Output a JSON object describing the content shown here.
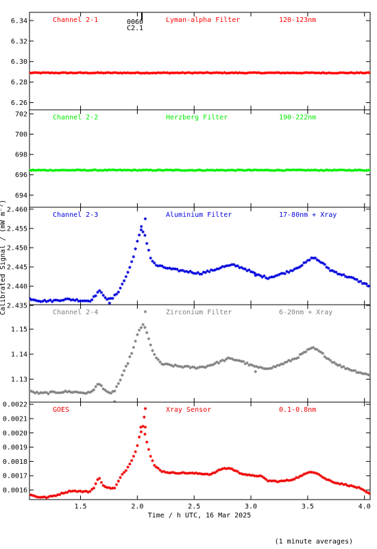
{
  "chart_data": {
    "type": "scatter",
    "xlabel": "Time / h UTC, 16 Mar 2025",
    "ylabel": "Calibrated Signal / (mW m⁻²)",
    "footnote": "(1 minute averages)",
    "xlim": [
      1.05,
      4.05
    ],
    "xticks": [
      1.5,
      2.0,
      2.5,
      3.0,
      3.5,
      4.0
    ],
    "xtick_labels": [
      "1.5",
      "2.0",
      "2.5",
      "3.0",
      "3.5",
      "4.0"
    ],
    "marker": {
      "top_label": "0060",
      "bottom_label": "C2.1",
      "x": 2.04
    },
    "panels": [
      {
        "channel": "Channel 2-1",
        "filter": "Lyman-alpha Filter",
        "band": "120-123nm",
        "color": "#ff0000",
        "ylim": [
          6.253,
          6.348
        ],
        "yticks": [
          6.26,
          6.28,
          6.3,
          6.32,
          6.34
        ],
        "ytick_labels": [
          "6.26",
          "6.28",
          "6.30",
          "6.32",
          "6.34"
        ],
        "curve": [
          [
            1.05,
            6.289
          ],
          [
            4.05,
            6.289
          ]
        ],
        "noise": 0.0004,
        "outliers": []
      },
      {
        "channel": "Channel 2-2",
        "filter": "Herzberg Filter",
        "band": "190-222nm",
        "color": "#00ee00",
        "ylim": [
          692.8,
          702.4
        ],
        "yticks": [
          694,
          696,
          698,
          700,
          702
        ],
        "ytick_labels": [
          "694",
          "696",
          "698",
          "700",
          "702"
        ],
        "curve": [
          [
            1.05,
            696.45
          ],
          [
            4.05,
            696.45
          ]
        ],
        "noise": 0.04,
        "outliers": []
      },
      {
        "channel": "Channel 2-3",
        "filter": "Aluminium Filter",
        "band": "17-80nm + Xray",
        "color": "#0000dd",
        "ylim": [
          2.4352,
          2.4605
        ],
        "yticks": [
          2.435,
          2.44,
          2.445,
          2.45,
          2.455,
          2.46
        ],
        "ytick_labels": [
          "2.435",
          "2.440",
          "2.445",
          "2.450",
          "2.455",
          "2.460"
        ],
        "curve": [
          [
            1.05,
            2.4368
          ],
          [
            1.15,
            2.4362
          ],
          [
            1.25,
            2.4362
          ],
          [
            1.33,
            2.4365
          ],
          [
            1.4,
            2.4366
          ],
          [
            1.5,
            2.4363
          ],
          [
            1.58,
            2.4362
          ],
          [
            1.62,
            2.4372
          ],
          [
            1.66,
            2.4388
          ],
          [
            1.7,
            2.4378
          ],
          [
            1.74,
            2.4365
          ],
          [
            1.78,
            2.4368
          ],
          [
            1.83,
            2.4385
          ],
          [
            1.88,
            2.4412
          ],
          [
            1.93,
            2.4445
          ],
          [
            1.97,
            2.4482
          ],
          [
            2.0,
            2.4515
          ],
          [
            2.03,
            2.4545
          ],
          [
            2.06,
            2.454
          ],
          [
            2.09,
            2.4505
          ],
          [
            2.12,
            2.447
          ],
          [
            2.16,
            2.4455
          ],
          [
            2.22,
            2.445
          ],
          [
            2.32,
            2.4443
          ],
          [
            2.45,
            2.4438
          ],
          [
            2.55,
            2.4433
          ],
          [
            2.65,
            2.444
          ],
          [
            2.75,
            2.445
          ],
          [
            2.85,
            2.4455
          ],
          [
            2.95,
            2.4445
          ],
          [
            3.05,
            2.443
          ],
          [
            3.15,
            2.4422
          ],
          [
            3.25,
            2.443
          ],
          [
            3.35,
            2.444
          ],
          [
            3.45,
            2.4455
          ],
          [
            3.55,
            2.4475
          ],
          [
            3.62,
            2.4462
          ],
          [
            3.7,
            2.4442
          ],
          [
            3.8,
            2.443
          ],
          [
            3.9,
            2.442
          ],
          [
            4.05,
            2.44
          ]
        ],
        "noise": 0.00025,
        "outliers": [
          [
            2.07,
            2.4575
          ],
          [
            2.035,
            2.4555
          ],
          [
            1.755,
            2.4356
          ],
          [
            3.04,
            2.4428
          ]
        ]
      },
      {
        "channel": "Channel 2-4",
        "filter": "Zirconium Filter",
        "band": "6-20nm + Xray",
        "color": "#808080",
        "ylim": [
          1.1208,
          1.1598
        ],
        "yticks": [
          1.13,
          1.14,
          1.15
        ],
        "ytick_labels": [
          "1.13",
          "1.14",
          "1.15"
        ],
        "curve": [
          [
            1.05,
            1.125
          ],
          [
            1.15,
            1.1243
          ],
          [
            1.3,
            1.1248
          ],
          [
            1.4,
            1.125
          ],
          [
            1.58,
            1.1244
          ],
          [
            1.62,
            1.1262
          ],
          [
            1.66,
            1.1282
          ],
          [
            1.7,
            1.1265
          ],
          [
            1.76,
            1.1238
          ],
          [
            1.8,
            1.1255
          ],
          [
            1.86,
            1.1305
          ],
          [
            1.92,
            1.137
          ],
          [
            1.97,
            1.143
          ],
          [
            2.01,
            1.149
          ],
          [
            2.05,
            1.152
          ],
          [
            2.08,
            1.149
          ],
          [
            2.12,
            1.143
          ],
          [
            2.17,
            1.138
          ],
          [
            2.22,
            1.136
          ],
          [
            2.35,
            1.1352
          ],
          [
            2.5,
            1.1346
          ],
          [
            2.6,
            1.135
          ],
          [
            2.7,
            1.1365
          ],
          [
            2.8,
            1.1382
          ],
          [
            2.9,
            1.1375
          ],
          [
            3.0,
            1.1355
          ],
          [
            3.1,
            1.1342
          ],
          [
            3.2,
            1.1348
          ],
          [
            3.3,
            1.1365
          ],
          [
            3.4,
            1.1385
          ],
          [
            3.5,
            1.1415
          ],
          [
            3.55,
            1.1425
          ],
          [
            3.62,
            1.1405
          ],
          [
            3.7,
            1.1375
          ],
          [
            3.8,
            1.135
          ],
          [
            3.9,
            1.1335
          ],
          [
            4.05,
            1.1315
          ]
        ],
        "noise": 0.0004,
        "outliers": [
          [
            2.07,
            1.157
          ],
          [
            1.8,
            1.121
          ],
          [
            3.04,
            1.133
          ]
        ]
      },
      {
        "channel": "GOES",
        "filter": "Xray Sensor",
        "band": "0.1-0.8nm",
        "color": "#ee0000",
        "ylim": [
          0.001533,
          0.002215
        ],
        "yticks": [
          0.0016,
          0.0017,
          0.0018,
          0.0019,
          0.002,
          0.0021,
          0.0022
        ],
        "ytick_labels": [
          "0.0016",
          "0.0017",
          "0.0018",
          "0.0019",
          "0.0020",
          "0.0021",
          "0.0022"
        ],
        "curve": [
          [
            1.05,
            0.001568
          ],
          [
            1.12,
            0.001552
          ],
          [
            1.2,
            0.001548
          ],
          [
            1.28,
            0.001562
          ],
          [
            1.35,
            0.00158
          ],
          [
            1.42,
            0.001595
          ],
          [
            1.5,
            0.00159
          ],
          [
            1.58,
            0.001588
          ],
          [
            1.62,
            0.00162
          ],
          [
            1.66,
            0.00169
          ],
          [
            1.69,
            0.00164
          ],
          [
            1.74,
            0.001615
          ],
          [
            1.8,
            0.001612
          ],
          [
            1.86,
            0.0017
          ],
          [
            1.91,
            0.00175
          ],
          [
            1.95,
            0.00181
          ],
          [
            1.99,
            0.00188
          ],
          [
            2.02,
            0.00198
          ],
          [
            2.05,
            0.00205
          ],
          [
            2.08,
            0.00195
          ],
          [
            2.11,
            0.00185
          ],
          [
            2.15,
            0.00177
          ],
          [
            2.22,
            0.00173
          ],
          [
            2.3,
            0.00172
          ],
          [
            2.4,
            0.00172
          ],
          [
            2.55,
            0.001715
          ],
          [
            2.65,
            0.00171
          ],
          [
            2.75,
            0.00175
          ],
          [
            2.82,
            0.001752
          ],
          [
            2.9,
            0.00172
          ],
          [
            3.0,
            0.0017
          ],
          [
            3.08,
            0.0017
          ],
          [
            3.15,
            0.001665
          ],
          [
            3.25,
            0.00166
          ],
          [
            3.35,
            0.00167
          ],
          [
            3.45,
            0.0017
          ],
          [
            3.52,
            0.00173
          ],
          [
            3.58,
            0.00172
          ],
          [
            3.65,
            0.00168
          ],
          [
            3.75,
            0.00165
          ],
          [
            3.85,
            0.001635
          ],
          [
            3.95,
            0.001615
          ],
          [
            4.05,
            0.00157
          ]
        ],
        "noise": 4e-06,
        "outliers": [
          [
            2.07,
            0.00217
          ],
          [
            2.06,
            0.00211
          ],
          [
            2.03,
            0.00204
          ],
          [
            2.07,
            0.00204
          ]
        ]
      }
    ]
  }
}
